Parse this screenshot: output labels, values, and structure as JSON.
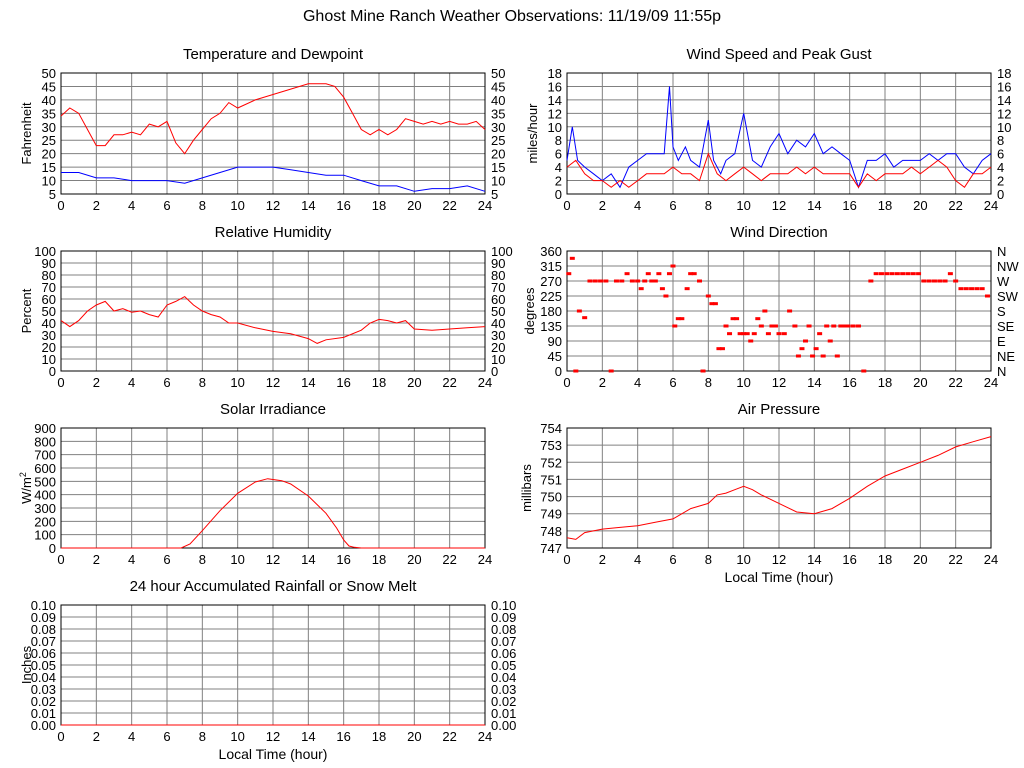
{
  "page": {
    "title": "Ghost Mine Ranch Weather Observations: 11/19/09 11:55p"
  },
  "colors": {
    "red": "#ff0000",
    "blue": "#0000ff",
    "grid": "#808080",
    "frame": "#000000"
  },
  "chart_data": [
    {
      "id": "temp",
      "type": "line",
      "title": "Temperature and Dewpoint",
      "ylabel": "Fahrenheit",
      "ylim": [
        5,
        50
      ],
      "yticks": [
        5,
        10,
        15,
        20,
        25,
        30,
        35,
        40,
        45,
        50
      ],
      "xlim": [
        0,
        24
      ],
      "xticks": [
        0,
        2,
        4,
        6,
        8,
        10,
        12,
        14,
        16,
        18,
        20,
        22,
        24
      ],
      "right_axis": true,
      "grid": true,
      "series": [
        {
          "color": "#ff0000",
          "x": [
            0,
            0.5,
            1,
            1.5,
            2,
            2.5,
            3,
            3.5,
            4,
            4.5,
            5,
            5.5,
            6,
            6.5,
            7,
            7.5,
            8,
            8.5,
            9,
            9.5,
            10,
            11,
            12,
            13,
            14,
            15,
            15.5,
            16,
            16.5,
            17,
            17.5,
            18,
            18.5,
            19,
            19.5,
            20,
            20.5,
            21,
            21.5,
            22,
            22.5,
            23,
            23.5,
            24
          ],
          "values": [
            34,
            37,
            35,
            29,
            23,
            23,
            27,
            27,
            28,
            27,
            31,
            30,
            32,
            24,
            20,
            25,
            29,
            33,
            35,
            39,
            37,
            40,
            42,
            44,
            46,
            46,
            45,
            41,
            35,
            29,
            27,
            29,
            27,
            29,
            33,
            32,
            31,
            32,
            31,
            32,
            31,
            31,
            32,
            29
          ]
        },
        {
          "color": "#0000ff",
          "x": [
            0,
            1,
            2,
            3,
            4,
            5,
            6,
            7,
            8,
            9,
            10,
            11,
            12,
            13,
            14,
            15,
            16,
            17,
            18,
            19,
            20,
            21,
            22,
            23,
            24
          ],
          "values": [
            13,
            13,
            11,
            11,
            10,
            10,
            10,
            9,
            11,
            13,
            15,
            15,
            15,
            14,
            13,
            12,
            12,
            10,
            8,
            8,
            6,
            7,
            7,
            8,
            6
          ]
        }
      ]
    },
    {
      "id": "wind",
      "type": "line",
      "title": "Wind Speed and Peak Gust",
      "ylabel": "miles/hour",
      "ylim": [
        0,
        18
      ],
      "yticks": [
        0,
        2,
        4,
        6,
        8,
        10,
        12,
        14,
        16,
        18
      ],
      "xlim": [
        0,
        24
      ],
      "xticks": [
        0,
        2,
        4,
        6,
        8,
        10,
        12,
        14,
        16,
        18,
        20,
        22,
        24
      ],
      "right_axis": true,
      "grid": true,
      "series": [
        {
          "color": "#0000ff",
          "x": [
            0,
            0.3,
            0.6,
            1,
            1.5,
            2,
            2.5,
            3,
            3.5,
            4,
            4.5,
            5,
            5.5,
            5.8,
            6,
            6.3,
            6.7,
            7,
            7.5,
            8,
            8.3,
            8.7,
            9,
            9.5,
            10,
            10.5,
            11,
            11.5,
            12,
            12.5,
            13,
            13.5,
            14,
            14.5,
            15,
            15.5,
            16,
            16.5,
            17,
            17.5,
            18,
            18.5,
            19,
            19.5,
            20,
            20.5,
            21,
            21.5,
            22,
            22.5,
            23,
            23.5,
            24
          ],
          "values": [
            5,
            10,
            5,
            4,
            3,
            2,
            3,
            1,
            4,
            5,
            6,
            6,
            6,
            16,
            7,
            5,
            7,
            5,
            4,
            11,
            5,
            3,
            5,
            6,
            12,
            5,
            4,
            7,
            9,
            6,
            8,
            7,
            9,
            6,
            7,
            6,
            5,
            1,
            5,
            5,
            6,
            4,
            5,
            5,
            5,
            6,
            5,
            6,
            6,
            4,
            3,
            5,
            6
          ]
        },
        {
          "color": "#ff0000",
          "x": [
            0,
            0.5,
            1,
            1.5,
            2,
            2.5,
            3,
            3.5,
            4,
            4.5,
            5,
            5.5,
            6,
            6.5,
            7,
            7.5,
            8,
            8.5,
            9,
            9.5,
            10,
            10.5,
            11,
            11.5,
            12,
            12.5,
            13,
            13.5,
            14,
            14.5,
            15,
            15.5,
            16,
            16.5,
            17,
            17.5,
            18,
            18.5,
            19,
            19.5,
            20,
            20.5,
            21,
            21.5,
            22,
            22.5,
            23,
            23.5,
            24
          ],
          "values": [
            4,
            5,
            3,
            2,
            2,
            1,
            2,
            1,
            2,
            3,
            3,
            3,
            4,
            3,
            3,
            2,
            6,
            3,
            2,
            3,
            4,
            3,
            2,
            3,
            3,
            3,
            4,
            3,
            4,
            3,
            3,
            3,
            3,
            1,
            3,
            2,
            3,
            3,
            3,
            4,
            3,
            4,
            5,
            4,
            2,
            1,
            3,
            3,
            4
          ]
        }
      ]
    },
    {
      "id": "humidity",
      "type": "line",
      "title": "Relative Humidity",
      "ylabel": "Percent",
      "ylim": [
        0,
        100
      ],
      "yticks": [
        0,
        10,
        20,
        30,
        40,
        50,
        60,
        70,
        80,
        90,
        100
      ],
      "xlim": [
        0,
        24
      ],
      "xticks": [
        0,
        2,
        4,
        6,
        8,
        10,
        12,
        14,
        16,
        18,
        20,
        22,
        24
      ],
      "right_axis": true,
      "grid": true,
      "series": [
        {
          "color": "#ff0000",
          "x": [
            0,
            0.5,
            1,
            1.5,
            2,
            2.5,
            3,
            3.5,
            4,
            4.5,
            5,
            5.5,
            6,
            6.5,
            7,
            7.5,
            8,
            8.5,
            9,
            9.5,
            10,
            11,
            12,
            13,
            14,
            14.5,
            15,
            16,
            17,
            17.5,
            18,
            18.5,
            19,
            19.5,
            20,
            21,
            22,
            23,
            24
          ],
          "values": [
            42,
            37,
            42,
            50,
            55,
            58,
            50,
            52,
            49,
            50,
            47,
            45,
            55,
            58,
            62,
            55,
            50,
            47,
            45,
            40,
            40,
            36,
            33,
            31,
            27,
            23,
            26,
            28,
            34,
            40,
            43,
            42,
            40,
            42,
            35,
            34,
            35,
            36,
            37
          ]
        }
      ]
    },
    {
      "id": "direction",
      "type": "scatter",
      "title": "Wind Direction",
      "ylabel": "degrees",
      "ylim": [
        0,
        360
      ],
      "yticks": [
        0,
        45,
        90,
        135,
        180,
        225,
        270,
        315,
        360
      ],
      "right_labels": [
        "N",
        "NE",
        "E",
        "SE",
        "S",
        "SW",
        "W",
        "NW",
        "N"
      ],
      "xlim": [
        0,
        24
      ],
      "xticks": [
        0,
        2,
        4,
        6,
        8,
        10,
        12,
        14,
        16,
        18,
        20,
        22,
        24
      ],
      "grid": true,
      "series": [
        {
          "color": "#ff0000",
          "x": [
            0.1,
            0.3,
            0.5,
            0.7,
            1.0,
            1.3,
            1.6,
            1.9,
            2.2,
            2.5,
            2.8,
            3.1,
            3.4,
            3.7,
            4.0,
            4.2,
            4.4,
            4.6,
            4.8,
            5.0,
            5.2,
            5.4,
            5.6,
            5.8,
            6.0,
            6.1,
            6.3,
            6.5,
            6.8,
            7.0,
            7.2,
            7.5,
            7.7,
            8.0,
            8.2,
            8.4,
            8.6,
            8.8,
            9.0,
            9.2,
            9.4,
            9.6,
            9.8,
            10.0,
            10.2,
            10.4,
            10.6,
            10.8,
            11.0,
            11.2,
            11.4,
            11.6,
            11.8,
            12.0,
            12.3,
            12.6,
            12.9,
            13.1,
            13.3,
            13.5,
            13.7,
            13.9,
            14.1,
            14.3,
            14.5,
            14.7,
            14.9,
            15.1,
            15.3,
            15.5,
            15.7,
            15.9,
            16.2,
            16.5,
            16.8,
            17.2,
            17.5,
            17.8,
            18.1,
            18.4,
            18.7,
            19.0,
            19.3,
            19.6,
            19.9,
            20.2,
            20.5,
            20.8,
            21.1,
            21.4,
            21.7,
            22.0,
            22.3,
            22.6,
            22.9,
            23.2,
            23.5,
            23.8
          ],
          "values": [
            292,
            338,
            0,
            180,
            160,
            270,
            270,
            270,
            270,
            0,
            270,
            270,
            292,
            270,
            270,
            247,
            270,
            292,
            270,
            270,
            292,
            247,
            225,
            292,
            315,
            135,
            157,
            157,
            247,
            292,
            292,
            270,
            0,
            225,
            202,
            202,
            67,
            67,
            135,
            112,
            157,
            157,
            112,
            112,
            112,
            90,
            112,
            157,
            135,
            180,
            112,
            135,
            135,
            112,
            112,
            180,
            135,
            45,
            67,
            90,
            135,
            45,
            67,
            112,
            45,
            135,
            90,
            135,
            45,
            135,
            135,
            135,
            135,
            135,
            0,
            270,
            292,
            292,
            292,
            292,
            292,
            292,
            292,
            292,
            292,
            270,
            270,
            270,
            270,
            270,
            292,
            270,
            247,
            247,
            247,
            247,
            247,
            225
          ]
        }
      ]
    },
    {
      "id": "solar",
      "type": "line",
      "title": "Solar Irradiance",
      "ylabel": "W/m",
      "ylabel_sup": "2",
      "ylim": [
        0,
        900
      ],
      "yticks": [
        0,
        100,
        200,
        300,
        400,
        500,
        600,
        700,
        800,
        900
      ],
      "xlim": [
        0,
        24
      ],
      "xticks": [
        0,
        2,
        4,
        6,
        8,
        10,
        12,
        14,
        16,
        18,
        20,
        22,
        24
      ],
      "right_axis": false,
      "grid": true,
      "series": [
        {
          "color": "#ff0000",
          "x": [
            0,
            6.8,
            7.3,
            8,
            9,
            10,
            11,
            11.7,
            12.5,
            13,
            14,
            15,
            15.6,
            16,
            16.3,
            16.6,
            17,
            24
          ],
          "values": [
            0,
            0,
            30,
            130,
            280,
            410,
            495,
            520,
            505,
            480,
            390,
            260,
            150,
            60,
            15,
            5,
            0,
            0
          ]
        }
      ]
    },
    {
      "id": "pressure",
      "type": "line",
      "title": "Air Pressure",
      "ylabel": "millibars",
      "xlabel": "Local Time (hour)",
      "ylim": [
        747,
        754
      ],
      "yticks": [
        747,
        748,
        749,
        750,
        751,
        752,
        753,
        754
      ],
      "xlim": [
        0,
        24
      ],
      "xticks": [
        0,
        2,
        4,
        6,
        8,
        10,
        12,
        14,
        16,
        18,
        20,
        22,
        24
      ],
      "right_axis": false,
      "grid": true,
      "series": [
        {
          "color": "#ff0000",
          "x": [
            0,
            0.5,
            1,
            2,
            3,
            4,
            5,
            6,
            7,
            8,
            8.5,
            9,
            9.5,
            10,
            10.5,
            11,
            12,
            13,
            14,
            15,
            16,
            17,
            18,
            19,
            20,
            21,
            22,
            23,
            24
          ],
          "values": [
            747.6,
            747.5,
            747.9,
            748.1,
            748.2,
            748.3,
            748.5,
            748.7,
            749.3,
            749.6,
            750.1,
            750.2,
            750.4,
            750.6,
            750.4,
            750.1,
            749.6,
            749.1,
            749.0,
            749.3,
            749.9,
            750.6,
            751.2,
            751.6,
            752.0,
            752.4,
            752.9,
            753.2,
            753.5
          ]
        }
      ]
    },
    {
      "id": "rain",
      "type": "line",
      "title": "24 hour Accumulated Rainfall or Snow Melt",
      "ylabel": "Inches",
      "xlabel": "Local Time (hour)",
      "ylim": [
        0,
        0.1
      ],
      "yticks": [
        0,
        0.01,
        0.02,
        0.03,
        0.04,
        0.05,
        0.06,
        0.07,
        0.08,
        0.09,
        0.1
      ],
      "ytick_labels": [
        "0.00",
        "0.01",
        "0.02",
        "0.03",
        "0.04",
        "0.05",
        "0.06",
        "0.07",
        "0.08",
        "0.09",
        "0.10"
      ],
      "xlim": [
        0,
        24
      ],
      "xticks": [
        0,
        2,
        4,
        6,
        8,
        10,
        12,
        14,
        16,
        18,
        20,
        22,
        24
      ],
      "right_axis": true,
      "grid": true,
      "series": [
        {
          "color": "#ff0000",
          "x": [
            0,
            24
          ],
          "values": [
            0,
            0
          ]
        }
      ]
    }
  ]
}
